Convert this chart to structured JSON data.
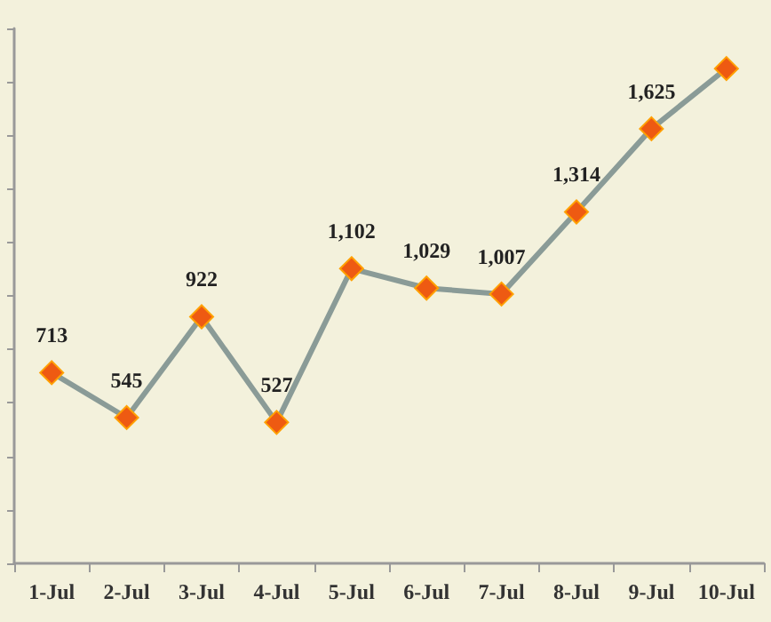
{
  "chart_data": {
    "type": "line",
    "categories": [
      "1-Jul",
      "2-Jul",
      "3-Jul",
      "4-Jul",
      "5-Jul",
      "6-Jul",
      "7-Jul",
      "8-Jul",
      "9-Jul",
      "10-Jul"
    ],
    "series": [
      {
        "color": "#8a9b97",
        "values": [
          713,
          545,
          922,
          527,
          1102,
          1029,
          1007,
          1314,
          1625,
          1850
        ],
        "value_labels": [
          "713",
          "545",
          "922",
          "527",
          "1,102",
          "1,029",
          "1,007",
          "1,314",
          "1,625",
          null
        ]
      }
    ],
    "ylim": [
      0,
      2000
    ],
    "yticks": [
      {
        "value": 0,
        "label": null
      },
      {
        "value": 200,
        "label": null
      },
      {
        "value": 400,
        "label": null
      },
      {
        "value": 600,
        "label": null
      },
      {
        "value": 800,
        "label": null
      },
      {
        "value": 1000,
        "label": null
      },
      {
        "value": 1200,
        "label": null
      },
      {
        "value": 1400,
        "label": null
      },
      {
        "value": 1600,
        "label": null
      },
      {
        "value": 1800,
        "label": null
      },
      {
        "value": 2000,
        "label": null
      }
    ],
    "tick_labels": "x",
    "marker": "diamond",
    "grid": false
  }
}
